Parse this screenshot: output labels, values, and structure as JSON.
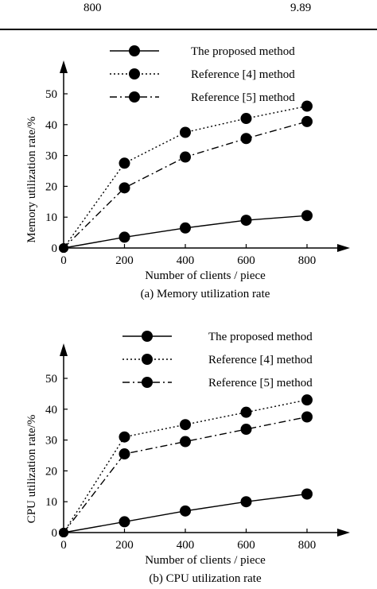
{
  "table_row": {
    "col1": "800",
    "col2": "9.89"
  },
  "chart_data": [
    {
      "type": "line",
      "caption": "(a) Memory utilization rate",
      "xlabel": "Number of clients / piece",
      "ylabel": "Memory utilization rate/%",
      "x": [
        0,
        200,
        400,
        600,
        800
      ],
      "xticks": [
        "0",
        "200",
        "400",
        "600",
        "800"
      ],
      "yticks": [
        "0",
        "10",
        "20",
        "30",
        "40",
        "50"
      ],
      "xlim": [
        0,
        800
      ],
      "ylim": [
        0,
        50
      ],
      "legend_position": "top-right",
      "series": [
        {
          "name": "The proposed method",
          "style": "solid",
          "values": [
            0,
            3.5,
            6.5,
            9,
            10.5
          ]
        },
        {
          "name": "Reference [4] method",
          "style": "dotted",
          "values": [
            0,
            27.5,
            37.5,
            42,
            46
          ]
        },
        {
          "name": "Reference [5] method",
          "style": "dashdot",
          "values": [
            0,
            19.5,
            29.5,
            35.5,
            41
          ]
        }
      ]
    },
    {
      "type": "line",
      "caption": "(b) CPU utilization rate",
      "xlabel": "Number of clients / piece",
      "ylabel": "CPU utilization rate/%",
      "x": [
        0,
        200,
        400,
        600,
        800
      ],
      "xticks": [
        "0",
        "200",
        "400",
        "600",
        "800"
      ],
      "yticks": [
        "0",
        "10",
        "20",
        "30",
        "40",
        "50"
      ],
      "xlim": [
        0,
        800
      ],
      "ylim": [
        0,
        50
      ],
      "legend_position": "top-right",
      "series": [
        {
          "name": "The proposed method",
          "style": "solid",
          "values": [
            0,
            3.5,
            7,
            10,
            12.5
          ]
        },
        {
          "name": "Reference [4] method",
          "style": "dotted",
          "values": [
            0,
            31,
            35,
            39,
            43
          ]
        },
        {
          "name": "Reference [5] method",
          "style": "dashdot",
          "values": [
            0,
            25.5,
            29.5,
            33.5,
            37.5
          ]
        }
      ]
    }
  ]
}
